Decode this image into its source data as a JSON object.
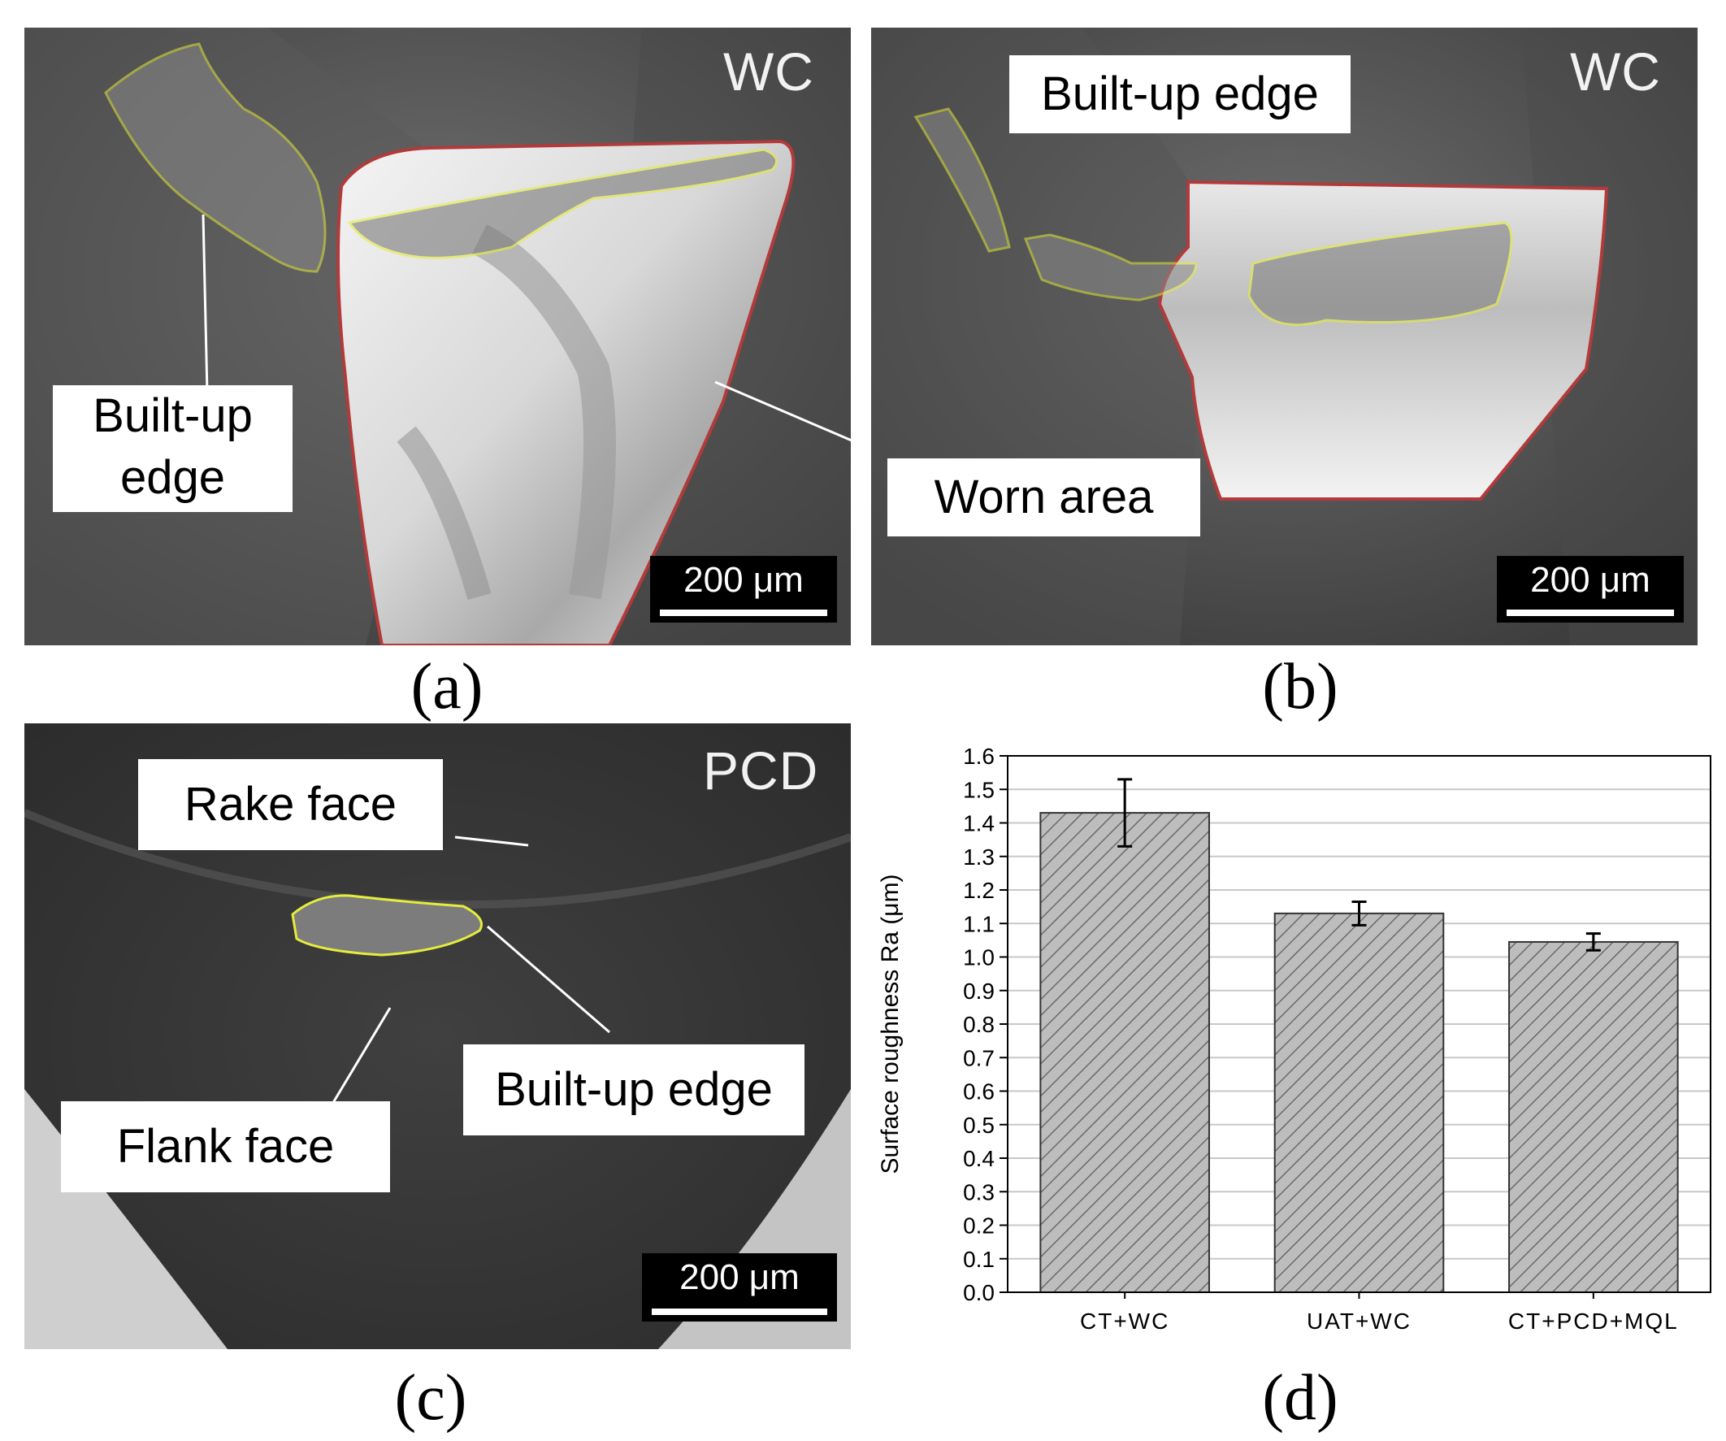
{
  "panels": {
    "a": {
      "sublabel": "(a)",
      "tool": "WC",
      "callouts": {
        "built_up_edge": "Built-up\nedge"
      },
      "scale_bar": "200 μm"
    },
    "b": {
      "sublabel": "(b)",
      "tool": "WC",
      "callouts": {
        "built_up_edge": "Built-up edge",
        "worn_area": "Worn area"
      },
      "scale_bar": "200 μm"
    },
    "c": {
      "sublabel": "(c)",
      "tool": "PCD",
      "callouts": {
        "rake_face": "Rake face",
        "built_up_edge": "Built-up edge",
        "flank_face": "Flank face"
      },
      "scale_bar": "200 μm"
    },
    "d": {
      "sublabel": "(d)"
    }
  },
  "colors": {
    "worn_outline": "#b23a3a",
    "bue_outline": "#e6ec3c",
    "bar_fill": "#bdbdbd",
    "grid": "#c8c8c8"
  },
  "chart_data": {
    "type": "bar",
    "categories": [
      "CT+WC",
      "UAT+WC",
      "CT+PCD+MQL"
    ],
    "values": [
      1.43,
      1.13,
      1.045
    ],
    "error": [
      0.1,
      0.035,
      0.025
    ],
    "xlabel": "",
    "ylabel": "Surface roughness Ra (μm)",
    "ylim": [
      0.0,
      1.6
    ],
    "yticks": [
      "0.0",
      "0.1",
      "0.2",
      "0.3",
      "0.4",
      "0.5",
      "0.6",
      "0.7",
      "0.8",
      "0.9",
      "1.0",
      "1.1",
      "1.2",
      "1.3",
      "1.4",
      "1.5",
      "1.6"
    ],
    "grid": true,
    "bar_pattern": "diagonal-hatch"
  }
}
